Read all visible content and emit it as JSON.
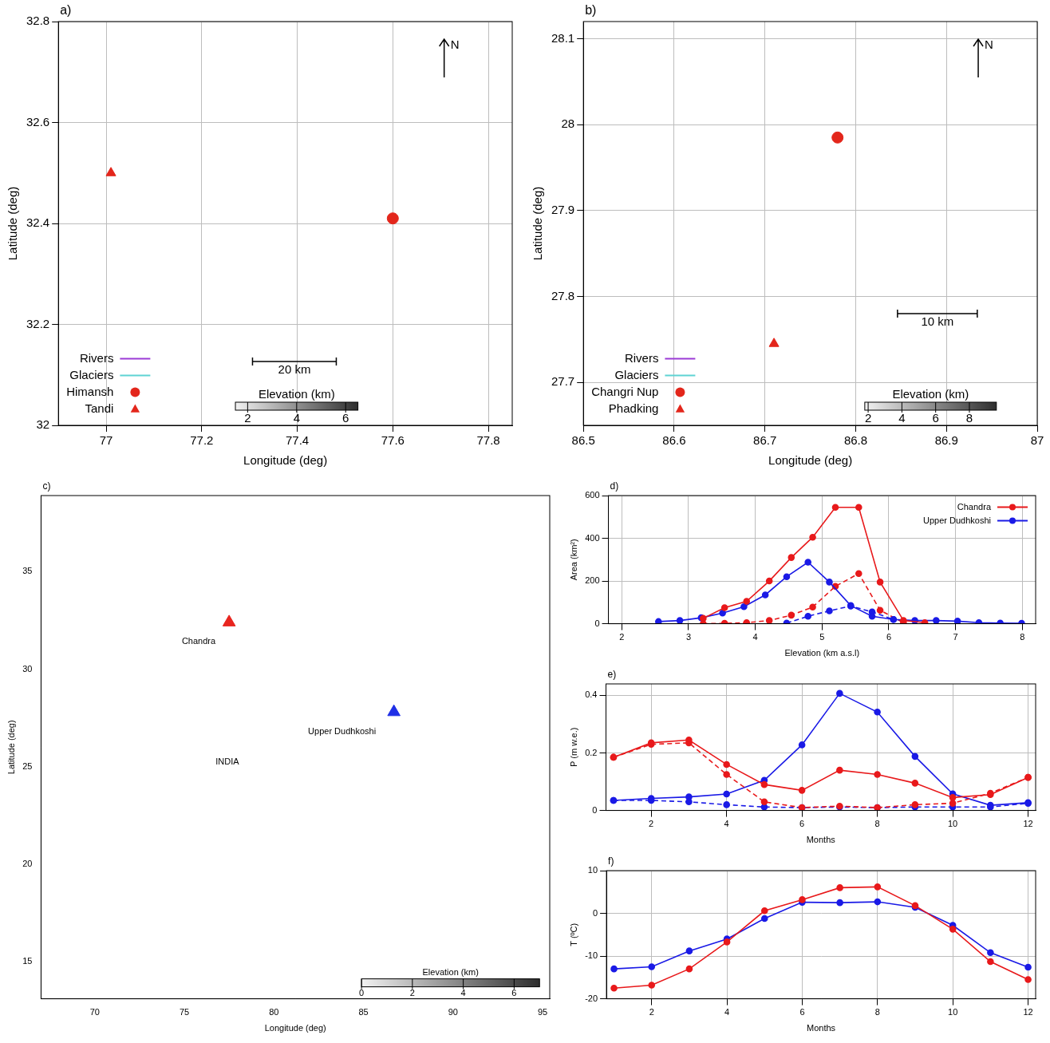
{
  "chart_data": [
    {
      "type": "map",
      "panel_label": "a)",
      "x_label": "Longitude (deg)",
      "y_label": "Latitude (deg)",
      "xlim": [
        76.9,
        77.85
      ],
      "xticks": [
        77,
        77.2,
        77.4,
        77.6,
        77.8
      ],
      "ylim": [
        32,
        32.8
      ],
      "yticks": [
        32,
        32.2,
        32.4,
        32.6,
        32.8
      ],
      "grid": true,
      "legend": "lower left",
      "series": [
        {
          "name": "Rivers",
          "color": "#9b3ad6",
          "line_style": "solid"
        },
        {
          "name": "Glaciers",
          "color": "#5fd3d3",
          "line_style": "solid"
        },
        {
          "name": "Himansh",
          "color": "#e3261b",
          "marker": "circle",
          "x": [
            77.6
          ],
          "y": [
            32.41
          ]
        },
        {
          "name": "Tandi",
          "color": "#e3261b",
          "marker": "triangle",
          "x": [
            77.01
          ],
          "y": [
            32.5
          ]
        }
      ],
      "scale_bar": "20 km",
      "north_label": "N",
      "colorbar": {
        "title": "Elevation (km)",
        "range": [
          1.5,
          6.5
        ],
        "ticks": [
          2,
          4,
          6
        ]
      }
    },
    {
      "type": "map",
      "panel_label": "b)",
      "x_label": "Longitude (deg)",
      "y_label": "Latitude (deg)",
      "xlim": [
        86.5,
        87
      ],
      "xticks": [
        86.5,
        86.6,
        86.7,
        86.8,
        86.9,
        87
      ],
      "ylim": [
        27.65,
        28.12
      ],
      "yticks": [
        27.7,
        27.8,
        27.9,
        28,
        28.1
      ],
      "grid": true,
      "legend": "lower left",
      "series": [
        {
          "name": "Rivers",
          "color": "#9b3ad6",
          "line_style": "solid"
        },
        {
          "name": "Glaciers",
          "color": "#5fd3d3",
          "line_style": "solid"
        },
        {
          "name": "Changri Nup",
          "color": "#e3261b",
          "marker": "circle",
          "x": [
            86.78
          ],
          "y": [
            27.985
          ]
        },
        {
          "name": "Phadking",
          "color": "#e3261b",
          "marker": "triangle",
          "x": [
            86.71
          ],
          "y": [
            27.745
          ]
        }
      ],
      "scale_bar": "10 km",
      "north_label": "N",
      "colorbar": {
        "title": "Elevation (km)",
        "range": [
          1.8,
          9.6
        ],
        "ticks": [
          2,
          4,
          6,
          8
        ]
      }
    },
    {
      "type": "map",
      "panel_label": "c)",
      "x_label": "Longitude (deg)",
      "y_label": "Latitude (deg)",
      "xlim": [
        67,
        95.4
      ],
      "xticks": [
        70,
        75,
        80,
        85,
        90,
        95
      ],
      "ylim": [
        13.1,
        38.9
      ],
      "yticks": [
        15,
        20,
        25,
        30,
        35
      ],
      "grid": false,
      "series": [
        {
          "color": "#e8251f",
          "marker": "triangle",
          "x": [
            77.5
          ],
          "y": [
            32.4
          ]
        },
        {
          "color": "#1f2fe6",
          "marker": "triangle",
          "x": [
            86.7
          ],
          "y": [
            27.8
          ]
        }
      ],
      "annotations": [
        {
          "text": "Chandra",
          "x": 75.8,
          "y": 31.4
        },
        {
          "text": "Upper Dudhkoshi",
          "x": 83.8,
          "y": 26.8
        },
        {
          "text": "INDIA",
          "x": 77.4,
          "y": 25.25
        }
      ],
      "colorbar": {
        "title": "Elevation (km)",
        "range": [
          0,
          7
        ],
        "ticks": [
          0,
          2,
          4,
          6
        ]
      }
    },
    {
      "type": "line",
      "panel_label": "d)",
      "x_label": "Elevation (km a.s.l)",
      "y_label": "Area (km²)",
      "xlim": [
        1.8,
        8.2
      ],
      "xticks": [
        2,
        3,
        4,
        5,
        6,
        7,
        8
      ],
      "ylim": [
        0,
        600
      ],
      "yticks": [
        0,
        200,
        400,
        600
      ],
      "grid": true,
      "legend": "upper right",
      "series": [
        {
          "name": "Chandra",
          "color": "#e8191b",
          "marker": "circle",
          "line_style": "solid",
          "x": [
            3.22,
            3.54,
            3.87,
            4.21,
            4.54,
            4.86,
            5.2,
            5.55,
            5.87,
            6.22,
            6.54
          ],
          "values": [
            25,
            75,
            105,
            200,
            310,
            405,
            545,
            545,
            195,
            15,
            5
          ]
        },
        {
          "name": "Upper Dudhkoshi",
          "color": "#1a1ae6",
          "marker": "circle",
          "line_style": "solid",
          "x": [
            2.55,
            2.87,
            3.19,
            3.51,
            3.83,
            4.15,
            4.47,
            4.79,
            5.11,
            5.43,
            5.75,
            6.07,
            6.39,
            6.71,
            7.03,
            7.35,
            7.67,
            7.99
          ],
          "values": [
            10,
            15,
            28,
            50,
            80,
            135,
            220,
            288,
            195,
            85,
            35,
            20,
            15,
            15,
            12,
            5,
            3,
            2
          ]
        },
        {
          "color": "#e8191b",
          "marker": "circle",
          "line_style": "dashed",
          "x": [
            3.22,
            3.54,
            3.87,
            4.21,
            4.54,
            4.86,
            5.2,
            5.55,
            5.87,
            6.22
          ],
          "values": [
            0,
            2,
            5,
            15,
            40,
            78,
            175,
            235,
            63,
            5
          ]
        },
        {
          "color": "#1a1ae6",
          "marker": "circle",
          "line_style": "dashed",
          "x": [
            4.47,
            4.79,
            5.11,
            5.43,
            5.75,
            6.07
          ],
          "values": [
            3,
            35,
            60,
            83,
            55,
            20
          ]
        }
      ]
    },
    {
      "type": "line",
      "panel_label": "e)",
      "x_label": "Months",
      "y_label": "P (m w.e.)",
      "x": [
        1,
        2,
        3,
        4,
        5,
        6,
        7,
        8,
        9,
        10,
        11,
        12
      ],
      "xlim": [
        0.8,
        12.2
      ],
      "xticks": [
        2,
        4,
        6,
        8,
        10,
        12
      ],
      "ylim": [
        0,
        0.44
      ],
      "yticks": [
        0,
        0.2,
        0.4
      ],
      "grid": true,
      "series": [
        {
          "color": "#e8191b",
          "marker": "circle",
          "line_style": "solid",
          "values": [
            0.185,
            0.235,
            0.245,
            0.16,
            0.09,
            0.07,
            0.14,
            0.125,
            0.095,
            0.045,
            0.055,
            0.115
          ]
        },
        {
          "color": "#e8191b",
          "marker": "circle",
          "line_style": "dashed",
          "values": [
            0.185,
            0.23,
            0.235,
            0.125,
            0.03,
            0.01,
            0.015,
            0.01,
            0.02,
            0.025,
            0.06,
            0.115
          ]
        },
        {
          "color": "#1a1ae6",
          "marker": "circle",
          "line_style": "solid",
          "values": [
            0.035,
            0.042,
            0.047,
            0.057,
            0.105,
            0.228,
            0.407,
            0.342,
            0.188,
            0.058,
            0.018,
            0.027
          ]
        },
        {
          "color": "#1a1ae6",
          "marker": "circle",
          "line_style": "dashed",
          "values": [
            0.035,
            0.035,
            0.03,
            0.02,
            0.012,
            0.01,
            0.012,
            0.01,
            0.012,
            0.012,
            0.012,
            0.025
          ]
        }
      ]
    },
    {
      "type": "line",
      "panel_label": "f)",
      "x_label": "Months",
      "y_label": "T (ºC)",
      "x": [
        1,
        2,
        3,
        4,
        5,
        6,
        7,
        8,
        9,
        10,
        11,
        12
      ],
      "xlim": [
        0.8,
        12.2
      ],
      "xticks": [
        2,
        4,
        6,
        8,
        10,
        12
      ],
      "ylim": [
        -20,
        10
      ],
      "yticks": [
        -20,
        -10,
        0,
        10
      ],
      "grid": true,
      "series": [
        {
          "color": "#e8191b",
          "marker": "circle",
          "line_style": "solid",
          "values": [
            -17.5,
            -16.8,
            -13,
            -6.7,
            0.6,
            3.2,
            6,
            6.2,
            1.8,
            -3.7,
            -11.3,
            -15.5
          ]
        },
        {
          "color": "#1a1ae6",
          "marker": "circle",
          "line_style": "solid",
          "values": [
            -13,
            -12.5,
            -8.8,
            -6,
            -1.2,
            2.6,
            2.5,
            2.7,
            1.4,
            -2.8,
            -9.2,
            -12.6
          ]
        }
      ]
    }
  ]
}
